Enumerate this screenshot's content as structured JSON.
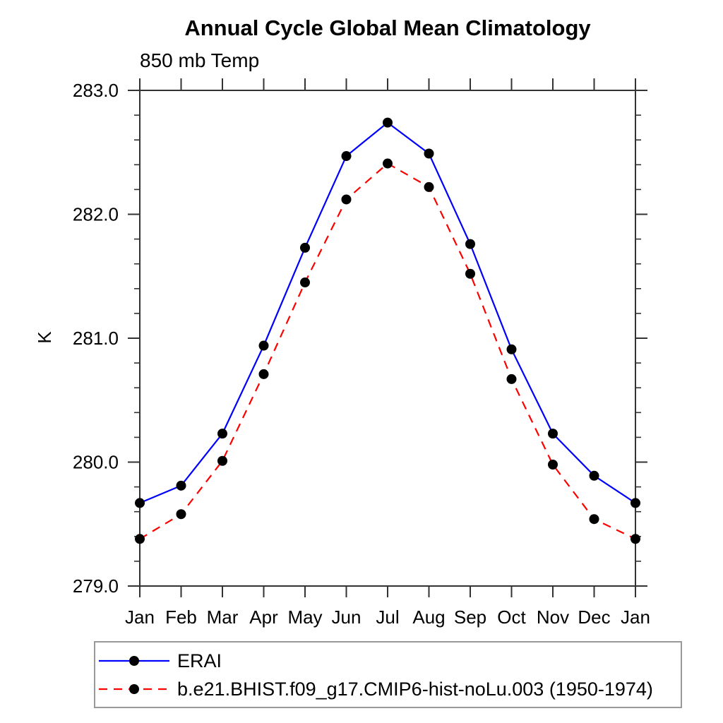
{
  "page": {
    "background_color": "#ffffff",
    "foreground_color": "#000000",
    "axis_color": "#333333",
    "legend_border_color": "#999999"
  },
  "chart_data": {
    "type": "line",
    "title": "Annual Cycle Global Mean Climatology",
    "subtitle": "850 mb Temp",
    "xlabel": "",
    "ylabel": "K",
    "x_categories": [
      "Jan",
      "Feb",
      "Mar",
      "Apr",
      "May",
      "Jun",
      "Jul",
      "Aug",
      "Sep",
      "Oct",
      "Nov",
      "Dec",
      "Jan"
    ],
    "ylim": [
      279.0,
      283.0
    ],
    "ytick_major": [
      279.0,
      280.0,
      281.0,
      282.0,
      283.0
    ],
    "ytick_labels": [
      "279.0",
      "280.0",
      "281.0",
      "282.0",
      "283.0"
    ],
    "ytick_minor_step": 0.2,
    "grid": false,
    "frame": "box-with-outward-ticks",
    "legend_position": "bottom-left-box",
    "marker": "filled-circle",
    "marker_color": "#000000",
    "series": [
      {
        "name": "ERAI",
        "color": "#0000ff",
        "style": "solid",
        "values": [
          279.67,
          279.81,
          280.23,
          280.94,
          281.73,
          282.47,
          282.74,
          282.49,
          281.76,
          280.91,
          280.23,
          279.89,
          279.67
        ]
      },
      {
        "name": "b.e21.BHIST.f09_g17.CMIP6-hist-noLu.003 (1950-1974)",
        "color": "#ff0000",
        "style": "dashed",
        "values": [
          279.38,
          279.58,
          280.01,
          280.71,
          281.45,
          282.12,
          282.41,
          282.22,
          281.52,
          280.67,
          279.98,
          279.54,
          279.38
        ]
      }
    ]
  }
}
